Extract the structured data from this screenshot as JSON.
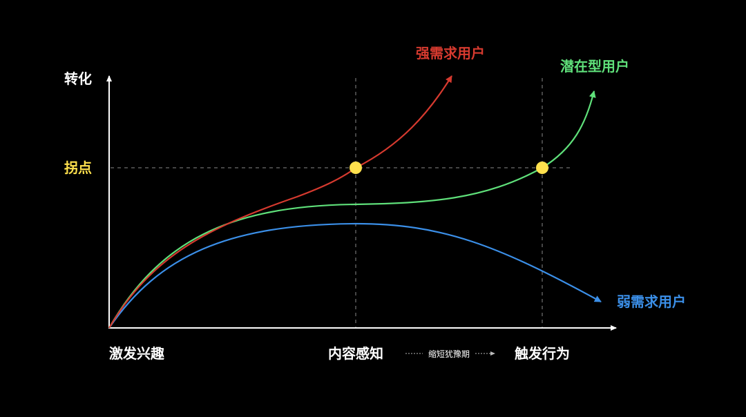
{
  "colors": {
    "background": "#000000",
    "axis": "#ffffff",
    "guide": "#8a8a8a",
    "point": "#ffe14d",
    "strong": "#d63a2f",
    "potential": "#5fe07a",
    "weak": "#3b8fe8"
  },
  "y_axis_label": "转化",
  "inflection_label": "拐点",
  "stages": {
    "interest": "激发兴趣",
    "content": "内容感知",
    "action": "触发行为"
  },
  "shorten_note": "缩短犹豫期",
  "series": {
    "strong": "强需求用户",
    "potential": "潜在型用户",
    "weak": "弱需求用户"
  }
}
